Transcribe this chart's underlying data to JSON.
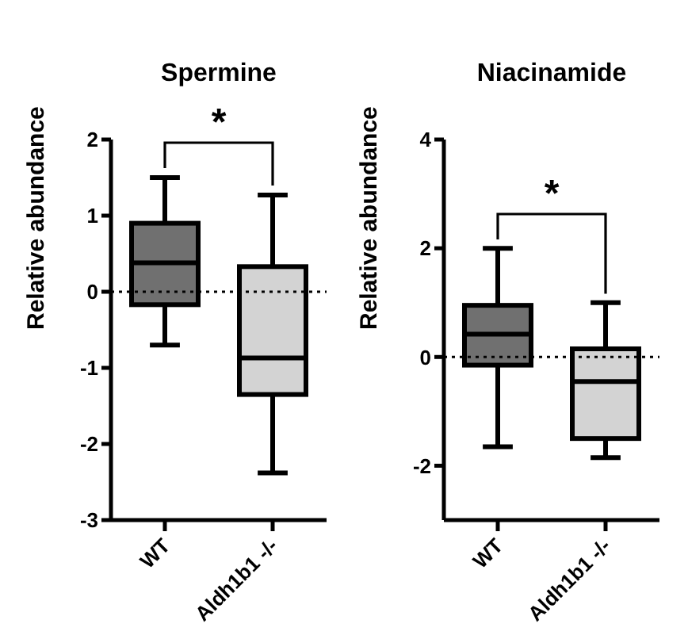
{
  "chart_data": [
    {
      "type": "box",
      "title": "Spermine",
      "ylabel": "Relative abundance",
      "categories": [
        "WT",
        "Aldh1b1 -/-"
      ],
      "colors": [
        "#707070",
        "#d3d3d3"
      ],
      "boxes": [
        {
          "low": -0.7,
          "q1": -0.17,
          "median": 0.38,
          "q3": 0.9,
          "high": 1.5
        },
        {
          "low": -2.38,
          "q1": -1.35,
          "median": -0.87,
          "q3": 0.33,
          "high": 1.27
        }
      ],
      "ylim": [
        -3,
        2
      ],
      "yticks": [
        -3,
        -2,
        -1,
        0,
        1,
        2
      ],
      "ref_lines": [
        {
          "axis": "y",
          "value": 0,
          "line_style": "dotted"
        }
      ],
      "annotations": [
        "*"
      ],
      "grid": false,
      "legend": false
    },
    {
      "type": "box",
      "title": "Niacinamide",
      "ylabel": "Relative abundance",
      "categories": [
        "WT",
        "Aldh1b1 -/-"
      ],
      "colors": [
        "#707070",
        "#d3d3d3"
      ],
      "boxes": [
        {
          "low": -1.65,
          "q1": -0.15,
          "median": 0.42,
          "q3": 0.95,
          "high": 2.0
        },
        {
          "low": -1.85,
          "q1": -1.5,
          "median": -0.45,
          "q3": 0.15,
          "high": 1.0
        }
      ],
      "ylim": [
        -3,
        4
      ],
      "yticks": [
        -2,
        0,
        2,
        4
      ],
      "ref_lines": [
        {
          "axis": "y",
          "value": 0,
          "line_style": "dotted"
        }
      ],
      "annotations": [
        "*"
      ],
      "grid": false,
      "legend": false
    }
  ]
}
